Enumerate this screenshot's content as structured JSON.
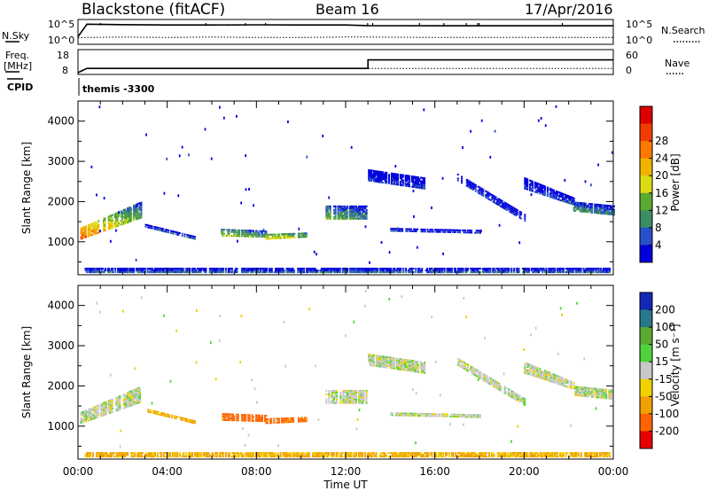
{
  "header": {
    "title": "Blackstone (fitACF)",
    "beam": "Beam 16",
    "date": "17/Apr/2016"
  },
  "strip_labels": {
    "nsky": "N.Sky",
    "nsky_ticks": [
      "10^5",
      "10^0"
    ],
    "nsearch": "N.Search",
    "nsearch_ticks": [
      "10^5",
      "10^0"
    ],
    "freq": "Freq.",
    "freq_unit": "[MHz]",
    "freq_ticks": [
      "18",
      "8"
    ],
    "nave": "Nave",
    "nave_ticks": [
      "60",
      "0"
    ],
    "cpid": "CPID",
    "cpid_value": "themis -3300"
  },
  "chart_data": [
    {
      "type": "line",
      "panel": "noise",
      "series": [
        {
          "name": "N.Sky",
          "style": "solid",
          "x": [
            0,
            0.4,
            2,
            4,
            6,
            8,
            10,
            12,
            13,
            16,
            20,
            24
          ],
          "y_log10": [
            1.5,
            4.7,
            4.6,
            4.5,
            4.5,
            4.55,
            4.5,
            4.5,
            4.35,
            4.3,
            4.3,
            4.3
          ]
        },
        {
          "name": "N.Search",
          "style": "dotted",
          "x": [
            0,
            0.4,
            2,
            4,
            6,
            8,
            10,
            12,
            13,
            16,
            20,
            24
          ],
          "y_log10": [
            1.2,
            1.3,
            1.4,
            1.3,
            1.4,
            1.3,
            1.3,
            1.4,
            1.4,
            1.3,
            1.3,
            1.3
          ]
        }
      ]
    },
    {
      "type": "line",
      "panel": "freq-nave",
      "series": [
        {
          "name": "Freq.",
          "style": "solid",
          "x": [
            0,
            0.4,
            13,
            13,
            24
          ],
          "y": [
            8,
            10,
            10,
            14,
            14
          ]
        },
        {
          "name": "Nave",
          "style": "dotted",
          "x": [
            0,
            0.4,
            13,
            13,
            24
          ],
          "y": [
            0,
            12,
            12,
            12,
            12
          ]
        }
      ]
    },
    {
      "type": "heatmap",
      "panel": "power",
      "ylabel": "Slant Range [km]",
      "xlabel": "",
      "x_range": [
        0,
        24
      ],
      "ylim": [
        180,
        4500
      ],
      "yticks": [
        "1000",
        "2000",
        "3000",
        "4000"
      ],
      "colorbar": {
        "label": "Power [dB]",
        "ticks": [
          "4",
          "8",
          "12",
          "16",
          "20",
          "24",
          "28"
        ],
        "range": [
          0,
          30
        ],
        "colors": [
          "#0000dd",
          "#2850c8",
          "#3c8c64",
          "#5aaa32",
          "#dcdc14",
          "#f0b400",
          "#ff7800",
          "#f03c00",
          "#dc0000"
        ]
      },
      "regions": [
        {
          "t": [
            0.1,
            2.8
          ],
          "r0": [
            1050,
            1580
          ],
          "r1": [
            1350,
            2000
          ],
          "p": [
            24,
            10
          ]
        },
        {
          "t": [
            3.0,
            5.2
          ],
          "r0": [
            1350,
            1050
          ],
          "r1": [
            1450,
            1150
          ],
          "p": [
            5,
            5
          ]
        },
        {
          "t": [
            6.4,
            8.4
          ],
          "r0": [
            1130,
            1100
          ],
          "r1": [
            1330,
            1280
          ],
          "p": [
            14,
            10
          ]
        },
        {
          "t": [
            8.4,
            10.2
          ],
          "r0": [
            1050,
            1100
          ],
          "r1": [
            1200,
            1230
          ],
          "p": [
            16,
            12
          ]
        },
        {
          "t": [
            11.1,
            12.9
          ],
          "r0": [
            1550,
            1550
          ],
          "r1": [
            1900,
            1900
          ],
          "p": [
            12,
            8
          ]
        },
        {
          "t": [
            13.0,
            15.5
          ],
          "r0": [
            2500,
            2300
          ],
          "r1": [
            2800,
            2600
          ],
          "p": [
            4,
            4
          ]
        },
        {
          "t": [
            14.0,
            18.0
          ],
          "r0": [
            1250,
            1200
          ],
          "r1": [
            1350,
            1300
          ],
          "p": [
            4,
            4
          ]
        },
        {
          "t": [
            17.0,
            20.0
          ],
          "r0": [
            2500,
            1500
          ],
          "r1": [
            2700,
            1700
          ],
          "p": [
            4,
            4
          ]
        },
        {
          "t": [
            20.0,
            22.2
          ],
          "r0": [
            2300,
            1900
          ],
          "r1": [
            2600,
            2100
          ],
          "p": [
            4,
            6
          ]
        },
        {
          "t": [
            22.2,
            24.0
          ],
          "r0": [
            1750,
            1650
          ],
          "r1": [
            2000,
            1900
          ],
          "p": [
            10,
            8
          ]
        },
        {
          "t": [
            0.3,
            23.8
          ],
          "r0": [
            220,
            220
          ],
          "r1": [
            350,
            350
          ],
          "p": [
            6,
            6
          ]
        }
      ]
    },
    {
      "type": "heatmap",
      "panel": "velocity",
      "ylabel": "Slant Range [km]",
      "xlabel": "Time UT",
      "x_range": [
        0,
        24
      ],
      "ylim": [
        180,
        4500
      ],
      "yticks": [
        "1000",
        "2000",
        "3000",
        "4000"
      ],
      "xticks": [
        "00:00",
        "04:00",
        "08:00",
        "12:00",
        "16:00",
        "20:00",
        "00:00"
      ],
      "colorbar": {
        "label": "Velocity [m s⁻¹]",
        "ticks": [
          "200",
          "100",
          "50",
          "15",
          "-15",
          "-50",
          "-100",
          "-200"
        ],
        "colors": [
          "#1428b4",
          "#28788c",
          "#5aaa32",
          "#50d23c",
          "#c8c8c8",
          "#f0d200",
          "#f0a000",
          "#ff6400",
          "#e60000"
        ]
      },
      "regions": [
        {
          "t": [
            0.1,
            2.8
          ],
          "r0": [
            1050,
            1580
          ],
          "r1": [
            1350,
            2000
          ],
          "v": 0
        },
        {
          "t": [
            3.0,
            5.2
          ],
          "r0": [
            1350,
            1050
          ],
          "r1": [
            1450,
            1150
          ],
          "v": -40
        },
        {
          "t": [
            6.4,
            8.4
          ],
          "r0": [
            1130,
            1100
          ],
          "r1": [
            1330,
            1280
          ],
          "v": -120
        },
        {
          "t": [
            8.4,
            10.2
          ],
          "r0": [
            1050,
            1100
          ],
          "r1": [
            1200,
            1230
          ],
          "v": -90
        },
        {
          "t": [
            11.1,
            12.9
          ],
          "r0": [
            1550,
            1550
          ],
          "r1": [
            1900,
            1900
          ],
          "v": 0
        },
        {
          "t": [
            13.0,
            15.5
          ],
          "r0": [
            2500,
            2300
          ],
          "r1": [
            2800,
            2600
          ],
          "v": 0
        },
        {
          "t": [
            14.0,
            18.0
          ],
          "r0": [
            1250,
            1200
          ],
          "r1": [
            1350,
            1300
          ],
          "v": 0
        },
        {
          "t": [
            17.0,
            20.0
          ],
          "r0": [
            2500,
            1500
          ],
          "r1": [
            2700,
            1700
          ],
          "v": 0
        },
        {
          "t": [
            20.0,
            22.2
          ],
          "r0": [
            2300,
            1900
          ],
          "r1": [
            2600,
            2100
          ],
          "v": 0
        },
        {
          "t": [
            22.2,
            24.0
          ],
          "r0": [
            1750,
            1650
          ],
          "r1": [
            2000,
            1900
          ],
          "v": 0
        },
        {
          "t": [
            0.3,
            23.8
          ],
          "r0": [
            220,
            220
          ],
          "r1": [
            350,
            350
          ],
          "v": -40
        }
      ]
    }
  ]
}
